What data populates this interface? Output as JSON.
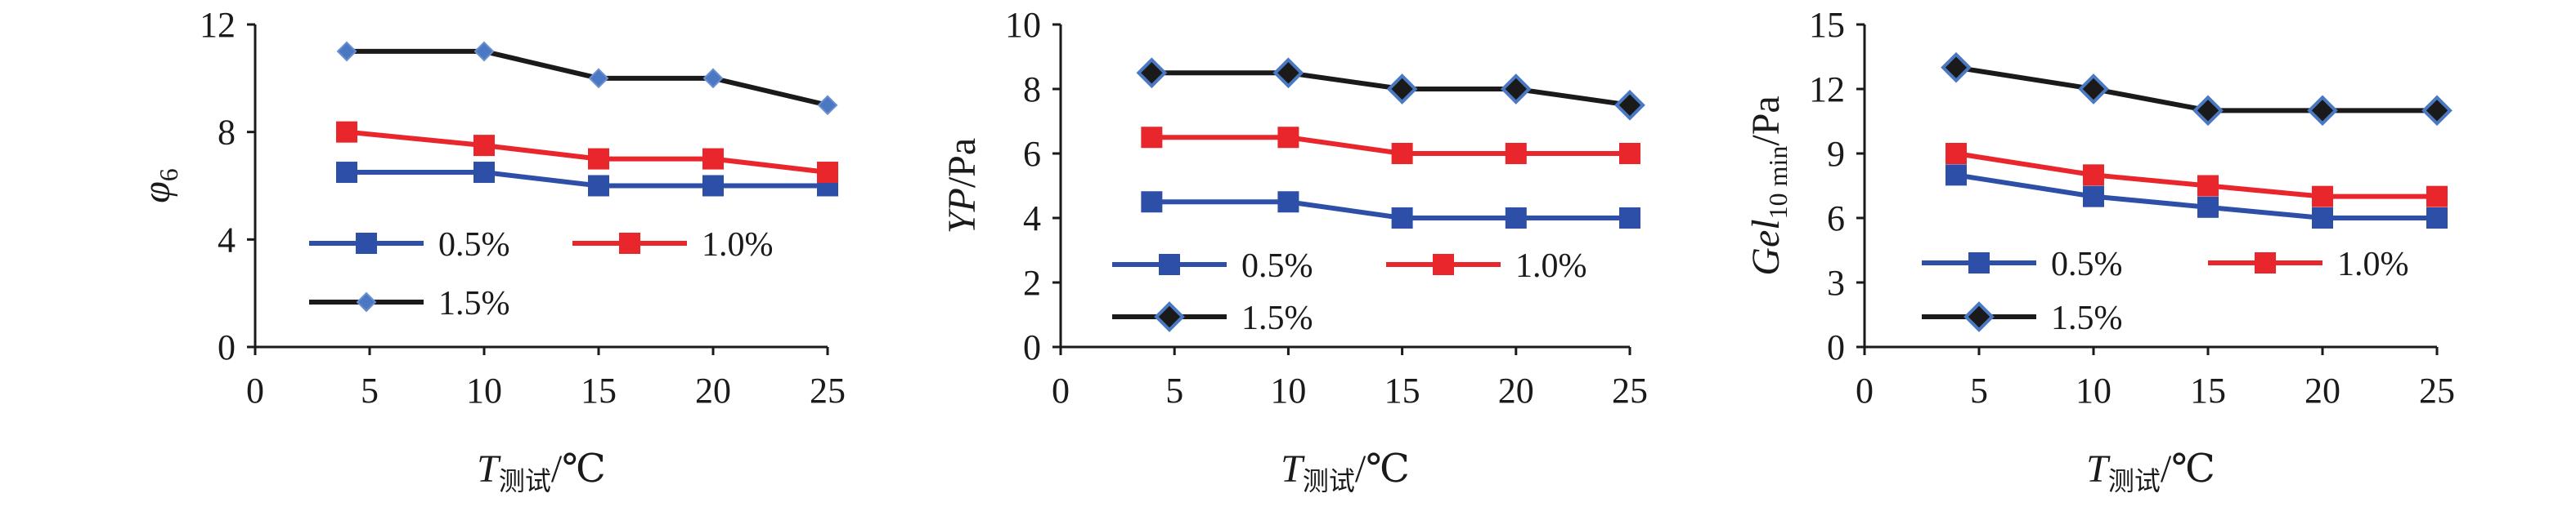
{
  "chart_data": [
    {
      "type": "line",
      "x": [
        4,
        10,
        15,
        20,
        25
      ],
      "xlim": [
        0,
        25
      ],
      "xticks": [
        "0",
        "5",
        "10",
        "15",
        "20",
        "25"
      ],
      "ylim": [
        0,
        12
      ],
      "yticks": [
        "0",
        "4",
        "8",
        "12"
      ],
      "ylabel": "φ",
      "ylabel_sub": "6",
      "xlabel": "T",
      "xlabel_sub": "测试",
      "xlabel_unit": "/℃",
      "series": [
        {
          "name": "0.5%",
          "values": [
            6.5,
            6.5,
            6.0,
            6.0,
            6.0
          ],
          "color": "#2e4fa8",
          "marker": "square"
        },
        {
          "name": "1.0%",
          "values": [
            8.0,
            7.5,
            7.0,
            7.0,
            6.5
          ],
          "color": "#e8262b",
          "marker": "square"
        },
        {
          "name": "1.5%",
          "values": [
            11.0,
            11.0,
            10.0,
            10.0,
            9.0
          ],
          "color": "#1a1a1a",
          "marker": "diamond-small"
        }
      ]
    },
    {
      "type": "line",
      "x": [
        4,
        10,
        15,
        20,
        25
      ],
      "xlim": [
        0,
        25
      ],
      "xticks": [
        "0",
        "5",
        "10",
        "15",
        "20",
        "25"
      ],
      "ylim": [
        0,
        10
      ],
      "yticks": [
        "0",
        "2",
        "4",
        "6",
        "8",
        "10"
      ],
      "ylabel": "YP",
      "ylabel_sub": "",
      "ylabel_unit": "/Pa",
      "xlabel": "T",
      "xlabel_sub": "测试",
      "xlabel_unit": "/℃",
      "series": [
        {
          "name": "0.5%",
          "values": [
            4.5,
            4.5,
            4.0,
            4.0,
            4.0
          ],
          "color": "#2e4fa8",
          "marker": "square"
        },
        {
          "name": "1.0%",
          "values": [
            6.5,
            6.5,
            6.0,
            6.0,
            6.0
          ],
          "color": "#e8262b",
          "marker": "square"
        },
        {
          "name": "1.5%",
          "values": [
            8.5,
            8.5,
            8.0,
            8.0,
            7.5
          ],
          "color": "#1a1a1a",
          "marker": "diamond"
        }
      ]
    },
    {
      "type": "line",
      "x": [
        4,
        10,
        15,
        20,
        25
      ],
      "xlim": [
        0,
        25
      ],
      "xticks": [
        "0",
        "5",
        "10",
        "15",
        "20",
        "25"
      ],
      "ylim": [
        0,
        15
      ],
      "yticks": [
        "0",
        "3",
        "6",
        "9",
        "12",
        "15"
      ],
      "ylabel": "Gel",
      "ylabel_sub": "10 min",
      "ylabel_unit": "/Pa",
      "xlabel": "T",
      "xlabel_sub": "测试",
      "xlabel_unit": "/℃",
      "series": [
        {
          "name": "0.5%",
          "values": [
            8.0,
            7.0,
            6.5,
            6.0,
            6.0
          ],
          "color": "#2e4fa8",
          "marker": "square"
        },
        {
          "name": "1.0%",
          "values": [
            9.0,
            8.0,
            7.5,
            7.0,
            7.0
          ],
          "color": "#e8262b",
          "marker": "square"
        },
        {
          "name": "1.5%",
          "values": [
            13.0,
            12.0,
            11.0,
            11.0,
            11.0
          ],
          "color": "#1a1a1a",
          "marker": "diamond"
        }
      ]
    }
  ]
}
